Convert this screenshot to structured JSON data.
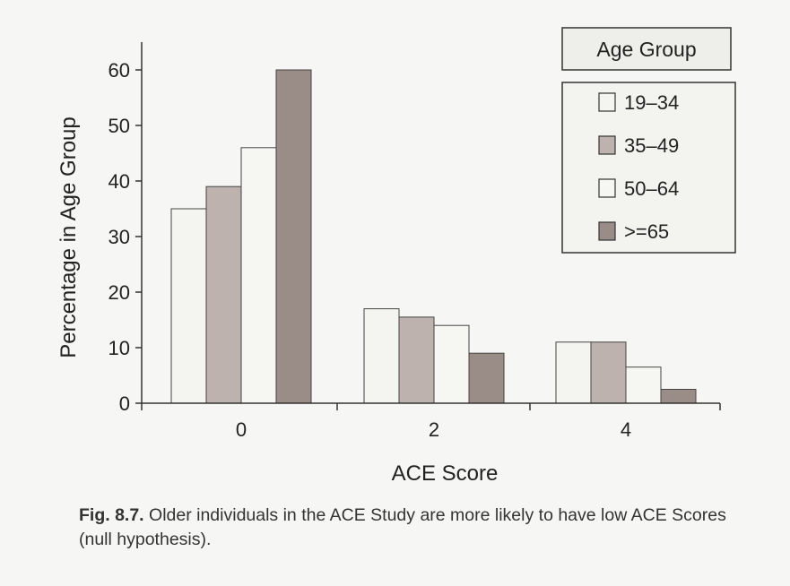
{
  "chart_data": {
    "type": "bar",
    "title": "",
    "xlabel": "ACE Score",
    "ylabel": "Percentage in Age Group",
    "categories": [
      "0",
      "2",
      "4"
    ],
    "ylim": [
      0,
      65
    ],
    "yticks": [
      0,
      10,
      20,
      30,
      40,
      50,
      60
    ],
    "grid": false,
    "legend": {
      "title": "Age Group",
      "placement": "top-right"
    },
    "series": [
      {
        "name": "19–34",
        "values": [
          35,
          17,
          11
        ],
        "color": "#f4f4f0"
      },
      {
        "name": "35–49",
        "values": [
          39,
          15.5,
          11
        ],
        "color": "#bdb2ae"
      },
      {
        "name": "50–64",
        "values": [
          46,
          14,
          6.5
        ],
        "color": "#f6f6f2"
      },
      {
        "name": ">=65",
        "values": [
          60,
          9,
          2.5
        ],
        "color": "#9a8c87"
      }
    ]
  },
  "caption": {
    "label": "Fig. 8.7.",
    "text": "Older individuals in the ACE Study are more likely to have low ACE Scores (null hypothesis)."
  }
}
